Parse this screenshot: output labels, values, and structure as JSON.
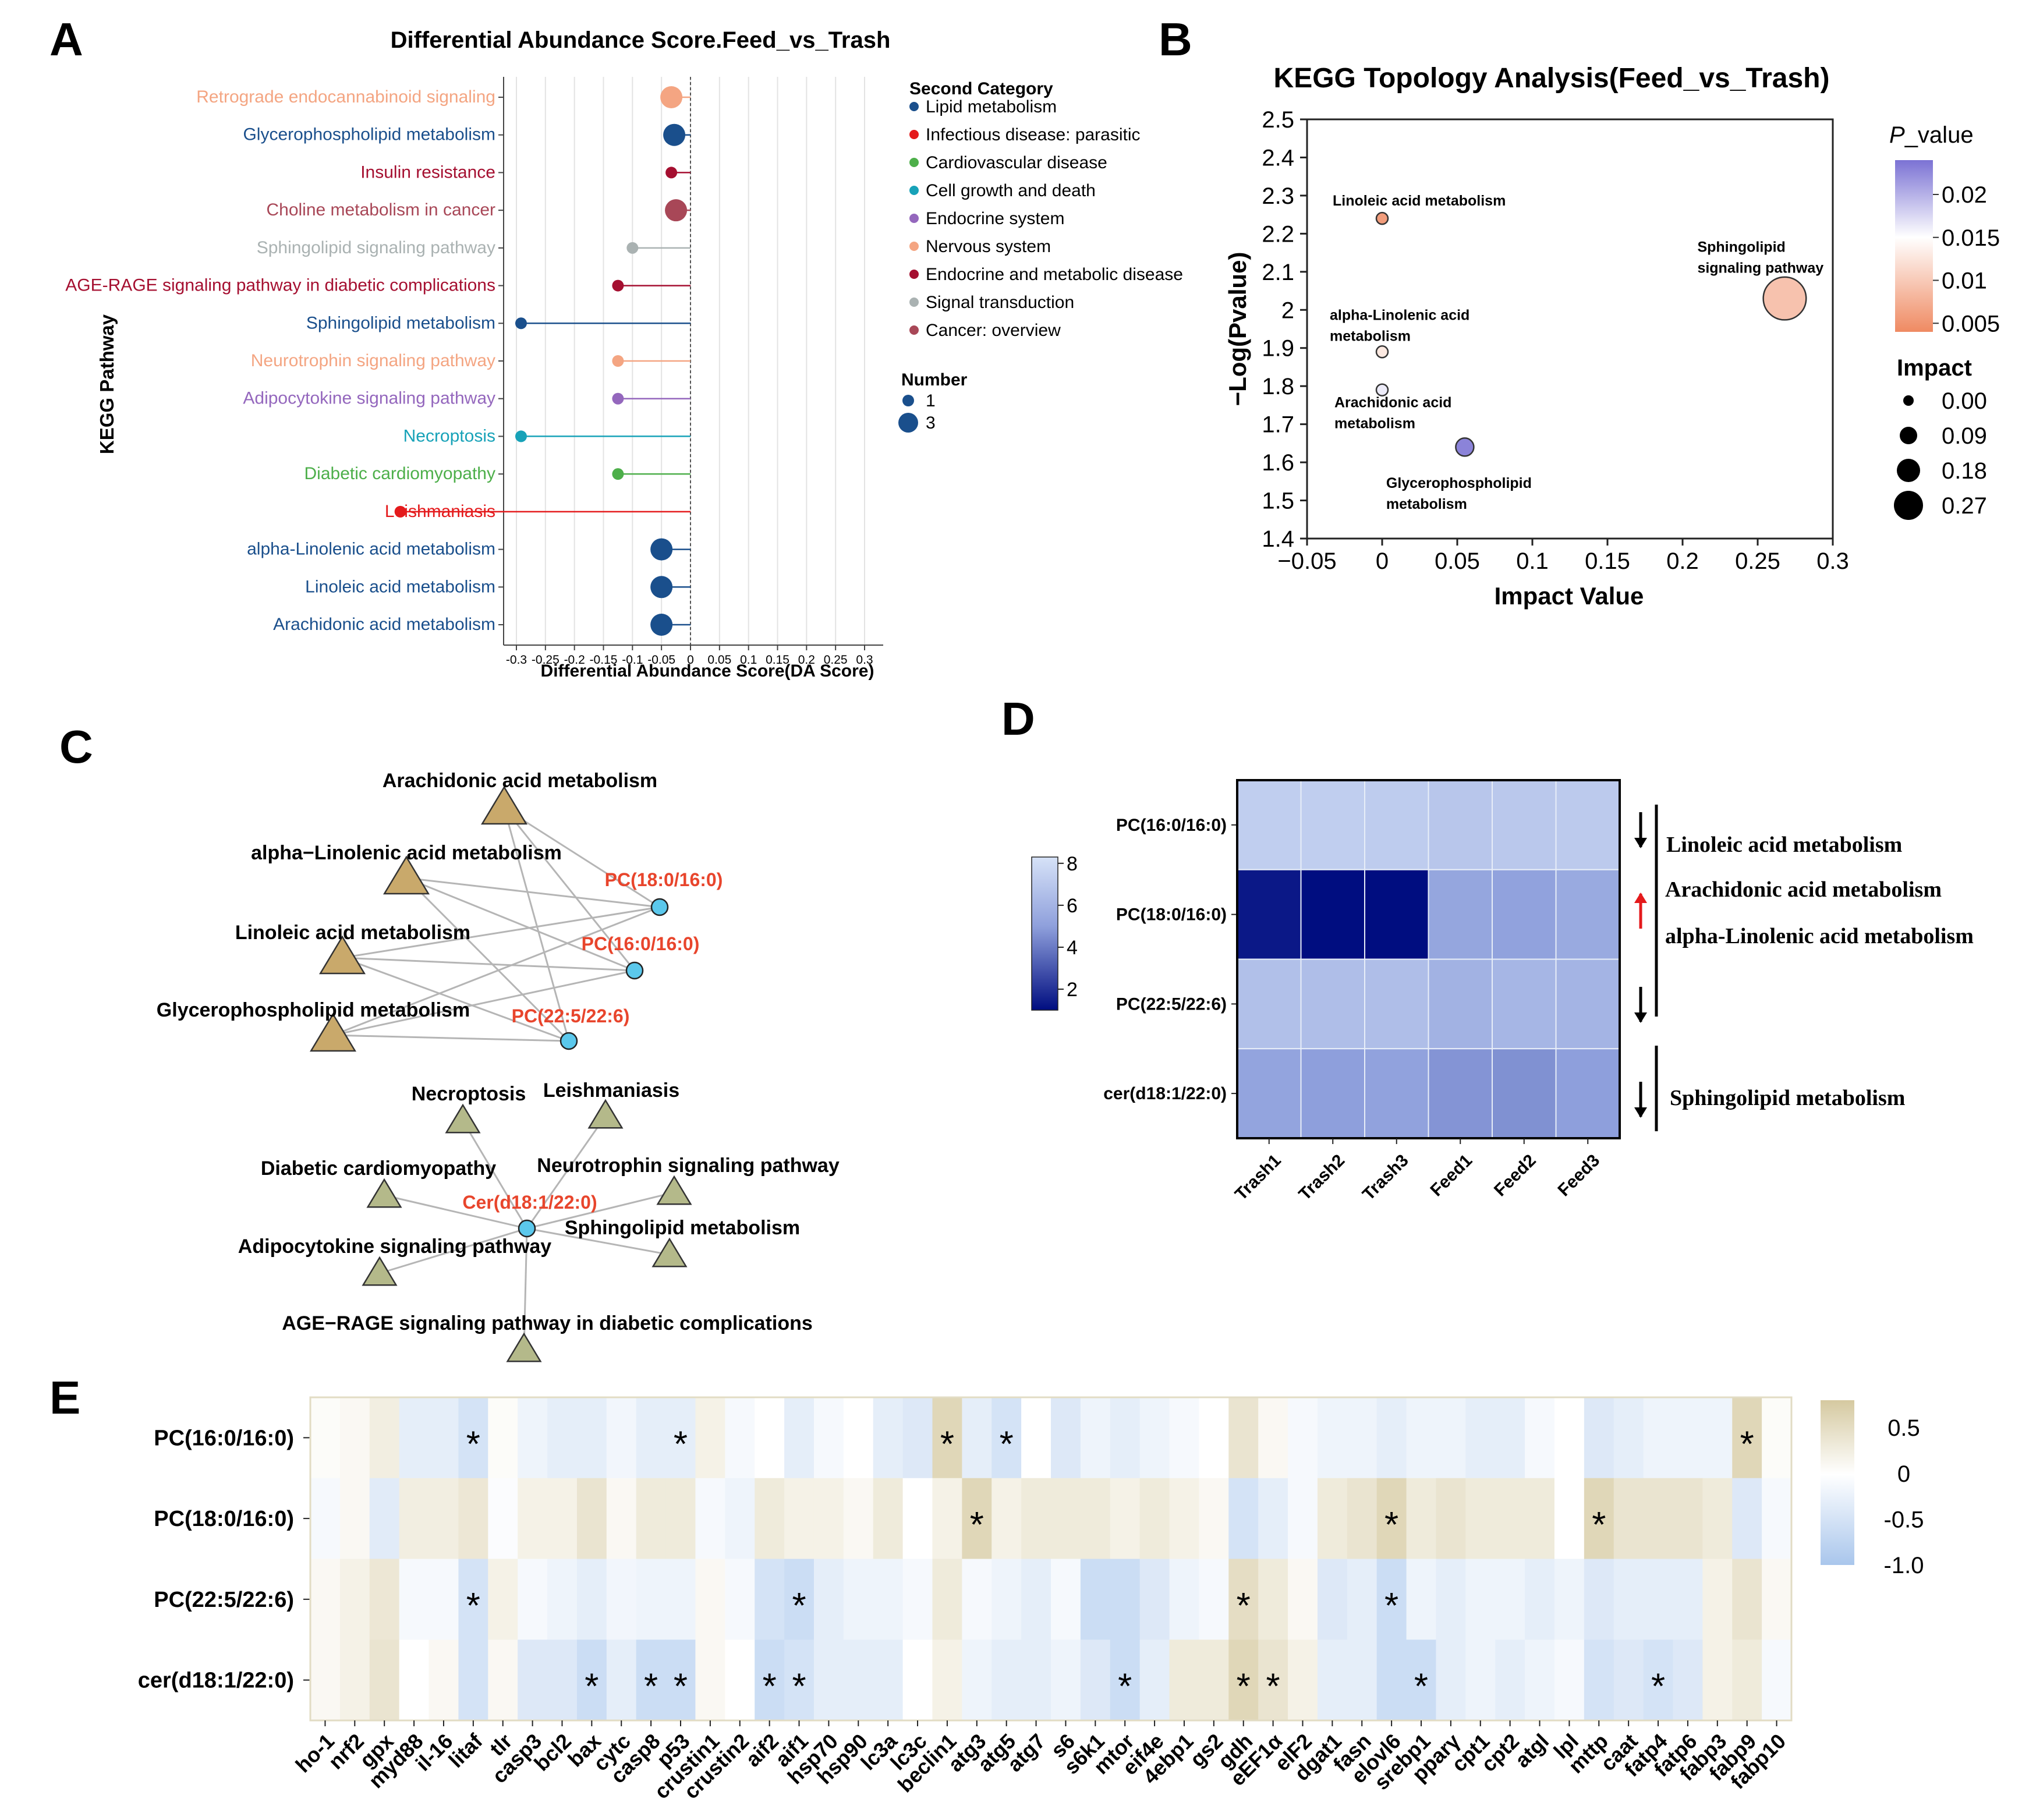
{
  "panel_letters": [
    "A",
    "B",
    "C",
    "D",
    "E"
  ],
  "chart_data": [
    {
      "panel": "A",
      "type": "lollipop",
      "title": "Differential Abundance Score.Feed_vs_Trash",
      "xlabel": "Differential Abundance Score(DA Score)",
      "ylabel": "KEGG Pathway",
      "xlim": [
        -0.3,
        0.3
      ],
      "xticks": [
        "-0.3",
        "-0.25",
        "-0.2",
        "-0.15",
        "-0.1",
        "-0.05",
        "0",
        "0.05",
        "0.1",
        "0.15",
        "0.2",
        "0.25",
        "0.3"
      ],
      "tick_values": [
        -0.3,
        -0.25,
        -0.2,
        -0.15,
        -0.1,
        -0.05,
        0,
        0.05,
        0.1,
        0.15,
        0.2,
        0.25,
        0.3
      ],
      "pathways": [
        {
          "name": "Retrograde endocannabinoid signaling",
          "score": -0.033,
          "number": 3,
          "category_index": 5
        },
        {
          "name": "Glycerophospholipid metabolism",
          "score": -0.028,
          "number": 3,
          "category_index": 0
        },
        {
          "name": "Insulin resistance",
          "score": -0.033,
          "number": 1,
          "category_index": 6
        },
        {
          "name": "Choline metabolism in cancer",
          "score": -0.025,
          "number": 3,
          "category_index": 8
        },
        {
          "name": "Sphingolipid signaling pathway",
          "score": -0.1,
          "number": 1,
          "category_index": 7
        },
        {
          "name": "AGE-RAGE signaling pathway in diabetic complications",
          "score": -0.125,
          "number": 1,
          "category_index": 6
        },
        {
          "name": "Sphingolipid metabolism",
          "score": -0.292,
          "number": 1,
          "category_index": 0
        },
        {
          "name": "Neurotrophin signaling pathway",
          "score": -0.125,
          "number": 1,
          "category_index": 5
        },
        {
          "name": "Adipocytokine signaling pathway",
          "score": -0.125,
          "number": 1,
          "category_index": 4
        },
        {
          "name": "Necroptosis",
          "score": -0.292,
          "number": 1,
          "category_index": 3
        },
        {
          "name": "Diabetic cardiomyopathy",
          "score": -0.125,
          "number": 1,
          "category_index": 2
        },
        {
          "name": "Leishmaniasis",
          "score": -0.5,
          "number": 1,
          "category_index": 1
        },
        {
          "name": "alpha-Linolenic acid metabolism",
          "score": -0.05,
          "number": 3,
          "category_index": 0
        },
        {
          "name": "Linoleic acid metabolism",
          "score": -0.05,
          "number": 3,
          "category_index": 0
        },
        {
          "name": "Arachidonic acid metabolism",
          "score": -0.05,
          "number": 3,
          "category_index": 0
        }
      ],
      "legend_title": "Second Category",
      "categories": [
        {
          "name": "Lipid metabolism",
          "color": "#1a4f8c"
        },
        {
          "name": "Infectious disease: parasitic",
          "color": "#e41a1c"
        },
        {
          "name": "Cardiovascular disease",
          "color": "#4daf4a"
        },
        {
          "name": "Cell growth and death",
          "color": "#17a2b8"
        },
        {
          "name": "Endocrine system",
          "color": "#9467bd"
        },
        {
          "name": "Nervous system",
          "color": "#f4a582"
        },
        {
          "name": "Endocrine and metabolic disease",
          "color": "#a50f30"
        },
        {
          "name": "Signal transduction",
          "color": "#aab2b2"
        },
        {
          "name": "Cancer: overview",
          "color": "#a84757"
        }
      ],
      "number_legend_title": "Number",
      "number_legend": [
        {
          "label": "1",
          "value": 1
        },
        {
          "label": "3",
          "value": 3
        }
      ]
    },
    {
      "panel": "B",
      "type": "scatter",
      "title": "KEGG Topology Analysis(Feed_vs_Trash)",
      "xlabel": "Impact Value",
      "ylabel": "−Log(Pvalue)",
      "xlim": [
        -0.05,
        0.3
      ],
      "ylim": [
        1.4,
        2.5
      ],
      "xticks": [
        "−0.05",
        "0",
        "0.05",
        "0.1",
        "0.15",
        "0.2",
        "0.25",
        "0.3"
      ],
      "xtick_values": [
        -0.05,
        0,
        0.05,
        0.1,
        0.15,
        0.2,
        0.25,
        0.3
      ],
      "yticks": [
        "1.4",
        "1.5",
        "1.6",
        "1.7",
        "1.8",
        "1.9",
        "2",
        "2.1",
        "2.2",
        "2.3",
        "2.4",
        "2.5"
      ],
      "ytick_values": [
        1.4,
        1.5,
        1.6,
        1.7,
        1.8,
        1.9,
        2.0,
        2.1,
        2.2,
        2.3,
        2.4,
        2.5
      ],
      "points": [
        {
          "label_lines": [
            "Linoleic acid metabolism"
          ],
          "x": 0,
          "y": 2.24,
          "impact": 0.0,
          "pvalue": 0.0058
        },
        {
          "label_lines": [
            "Sphingolipid",
            "signaling pathway"
          ],
          "x": 0.268,
          "y": 2.03,
          "impact": 0.268,
          "pvalue": 0.0093
        },
        {
          "label_lines": [
            "alpha-Linolenic acid",
            "metabolism"
          ],
          "x": 0,
          "y": 1.89,
          "impact": 0.0,
          "pvalue": 0.0129
        },
        {
          "label_lines": [
            "Arachidonic acid",
            "metabolism"
          ],
          "x": 0,
          "y": 1.79,
          "impact": 0.0,
          "pvalue": 0.0162
        },
        {
          "label_lines": [
            "Glycerophospholipid",
            "metabolism"
          ],
          "x": 0.055,
          "y": 1.64,
          "impact": 0.055,
          "pvalue": 0.0229
        }
      ],
      "colorbar_title": "P_value",
      "colorbar_title_italic": "P",
      "colorbar_title_rest": "_value",
      "colorbar_ticks": [
        "0.02",
        "0.015",
        "0.01",
        "0.005"
      ],
      "colorbar_tick_values": [
        0.02,
        0.015,
        0.01,
        0.005
      ],
      "colorbar_range": [
        0.004,
        0.024
      ],
      "size_legend_title": "Impact",
      "size_legend": [
        {
          "label": "0.00",
          "value": 0.0
        },
        {
          "label": "0.09",
          "value": 0.09
        },
        {
          "label": "0.18",
          "value": 0.18
        },
        {
          "label": "0.27",
          "value": 0.27
        }
      ]
    },
    {
      "panel": "C",
      "type": "network",
      "nodes": [
        {
          "id": "aa",
          "label": "Arachidonic acid metabolism",
          "kind": "pathway",
          "group": "lipid",
          "label_side": "above"
        },
        {
          "id": "ala",
          "label": "alpha−Linolenic acid metabolism",
          "kind": "pathway",
          "group": "lipid",
          "label_side": "above"
        },
        {
          "id": "la",
          "label": "Linoleic acid metabolism",
          "kind": "pathway",
          "group": "lipid",
          "label_side": "above"
        },
        {
          "id": "gp",
          "label": "Glycerophospholipid metabolism",
          "kind": "pathway",
          "group": "lipid",
          "label_side": "above"
        },
        {
          "id": "pc1",
          "label": "PC(18:0/16:0)",
          "kind": "metabolite",
          "label_side": "above"
        },
        {
          "id": "pc2",
          "label": "PC(16:0/16:0)",
          "kind": "metabolite",
          "label_side": "above"
        },
        {
          "id": "pc3",
          "label": "PC(22:5/22:6)",
          "kind": "metabolite",
          "label_side": "above"
        },
        {
          "id": "nec",
          "label": "Necroptosis",
          "kind": "pathway",
          "group": "other",
          "label_side": "above"
        },
        {
          "id": "lei",
          "label": "Leishmaniasis",
          "kind": "pathway",
          "group": "other",
          "label_side": "above"
        },
        {
          "id": "dc",
          "label": "Diabetic cardiomyopathy",
          "kind": "pathway",
          "group": "other",
          "label_side": "above"
        },
        {
          "id": "nsp",
          "label": "Neurotrophin signaling pathway",
          "kind": "pathway",
          "group": "other",
          "label_side": "above"
        },
        {
          "id": "cer",
          "label": "Cer(d18:1/22:0)",
          "kind": "metabolite",
          "label_side": "above"
        },
        {
          "id": "asp",
          "label": "Adipocytokine signaling pathway",
          "kind": "pathway",
          "group": "other",
          "label_side": "above"
        },
        {
          "id": "sm",
          "label": "Sphingolipid metabolism",
          "kind": "pathway",
          "group": "other",
          "label_side": "above"
        },
        {
          "id": "age",
          "label": "AGE−RAGE signaling pathway in diabetic complications",
          "kind": "pathway",
          "group": "other",
          "label_side": "above"
        }
      ],
      "edges": [
        [
          "aa",
          "pc1"
        ],
        [
          "aa",
          "pc2"
        ],
        [
          "aa",
          "pc3"
        ],
        [
          "ala",
          "pc1"
        ],
        [
          "ala",
          "pc2"
        ],
        [
          "ala",
          "pc3"
        ],
        [
          "la",
          "pc1"
        ],
        [
          "la",
          "pc2"
        ],
        [
          "la",
          "pc3"
        ],
        [
          "gp",
          "pc1"
        ],
        [
          "gp",
          "pc2"
        ],
        [
          "gp",
          "pc3"
        ],
        [
          "cer",
          "nec"
        ],
        [
          "cer",
          "lei"
        ],
        [
          "cer",
          "dc"
        ],
        [
          "cer",
          "nsp"
        ],
        [
          "cer",
          "asp"
        ],
        [
          "cer",
          "sm"
        ],
        [
          "cer",
          "age"
        ]
      ],
      "colors": {
        "lipid_triangle": "#c9a96b",
        "other_triangle": "#b4b98a",
        "metabolite": "#5bc8ec",
        "edge": "#b5b5b5",
        "metabolite_label": "#e8452c"
      }
    },
    {
      "panel": "D",
      "type": "heatmap",
      "rows": [
        "PC(16:0/16:0)",
        "PC(18:0/16:0)",
        "PC(22:5/22:6)",
        "cer(d18:1/22:0)"
      ],
      "columns": [
        "Trash1",
        "Trash2",
        "Trash3",
        "Feed1",
        "Feed2",
        "Feed3"
      ],
      "values": [
        [
          7.3,
          7.3,
          7.2,
          6.9,
          7.0,
          7.1
        ],
        [
          1.3,
          1.0,
          1.0,
          5.3,
          5.1,
          5.5
        ],
        [
          6.6,
          6.5,
          6.5,
          5.9,
          6.1,
          6.0
        ],
        [
          5.2,
          5.0,
          5.1,
          4.7,
          4.6,
          5.0
        ]
      ],
      "colorbar_ticks": [
        "8",
        "6",
        "4",
        "2"
      ],
      "colorbar_tick_values": [
        8,
        6,
        4,
        2
      ],
      "colorbar_range": [
        1,
        8.3
      ],
      "annotations": [
        {
          "arrow": "down",
          "color": "#000000",
          "labels": [
            "Linoleic acid metabolism"
          ]
        },
        {
          "arrow": "up",
          "color": "#e41a1c",
          "labels": [
            "Arachidonic acid metabolism",
            "alpha-Linolenic acid metabolism"
          ]
        },
        {
          "arrow": "down",
          "color": "#000000",
          "labels": []
        },
        {
          "arrow": "down",
          "color": "#000000",
          "labels": [
            "Sphingolipid metabolism"
          ]
        }
      ]
    },
    {
      "panel": "E",
      "type": "heatmap",
      "rows": [
        "PC(16:0/16:0)",
        "PC(18:0/16:0)",
        "PC(22:5/22:6)",
        "cer(d18:1/22:0)"
      ],
      "columns": [
        "ho-1",
        "nrf2",
        "gpx",
        "myd88",
        "il-16",
        "litaf",
        "tlr",
        "casp3",
        "bcl2",
        "bax",
        "cytc",
        "casp8",
        "p53",
        "crustin1",
        "crustin2",
        "aif2",
        "aif1",
        "hsp70",
        "hsp90",
        "lc3a",
        "lc3c",
        "beclin1",
        "atg3",
        "atg5",
        "atg7",
        "s6",
        "s6k1",
        "mtor",
        "eif4e",
        "4ebp1",
        "gs2",
        "gdh",
        "eEF1α",
        "eIF2",
        "dgat1",
        "fasn",
        "elovl6",
        "srebp1",
        "pparγ",
        "cpt1",
        "cpt2",
        "atgl",
        "lpl",
        "mttp",
        "caat",
        "fatp4",
        "fatp6",
        "fabp3",
        "fabp9",
        "fabp10"
      ],
      "values": [
        [
          0.05,
          0.1,
          0.25,
          -0.3,
          -0.3,
          -0.5,
          0.05,
          -0.2,
          -0.3,
          -0.3,
          -0.15,
          -0.3,
          -0.3,
          0.2,
          -0.1,
          0.0,
          -0.3,
          -0.1,
          0.0,
          -0.3,
          -0.4,
          0.6,
          -0.3,
          -0.5,
          0.0,
          -0.4,
          -0.2,
          -0.3,
          -0.2,
          -0.1,
          0.0,
          0.4,
          0.1,
          -0.1,
          -0.2,
          -0.2,
          -0.3,
          -0.2,
          -0.2,
          -0.3,
          -0.3,
          -0.1,
          0.0,
          -0.4,
          -0.3,
          -0.2,
          -0.2,
          -0.2,
          0.6,
          0.05
        ],
        [
          -0.1,
          0.1,
          -0.35,
          0.25,
          0.25,
          0.35,
          -0.05,
          0.2,
          0.2,
          0.4,
          0.1,
          0.3,
          0.3,
          -0.1,
          -0.2,
          0.3,
          0.2,
          0.2,
          0.1,
          0.3,
          0.0,
          0.2,
          0.6,
          0.2,
          0.3,
          0.3,
          0.3,
          0.2,
          0.3,
          0.2,
          0.1,
          -0.5,
          -0.3,
          -0.1,
          0.3,
          0.4,
          0.6,
          0.3,
          0.4,
          0.3,
          0.3,
          0.3,
          0.0,
          0.6,
          0.4,
          0.4,
          0.4,
          0.3,
          -0.4,
          -0.1
        ],
        [
          0.1,
          0.2,
          0.35,
          -0.1,
          -0.1,
          -0.5,
          0.2,
          -0.1,
          -0.2,
          -0.3,
          -0.15,
          -0.2,
          -0.2,
          0.1,
          -0.1,
          -0.5,
          -0.6,
          -0.3,
          -0.2,
          -0.2,
          -0.1,
          0.3,
          -0.1,
          -0.2,
          -0.3,
          -0.1,
          -0.6,
          -0.6,
          -0.4,
          -0.2,
          -0.1,
          0.5,
          0.3,
          0.1,
          -0.4,
          -0.3,
          -0.6,
          -0.2,
          -0.3,
          -0.2,
          -0.2,
          -0.3,
          -0.2,
          -0.4,
          -0.3,
          -0.3,
          -0.3,
          0.2,
          0.4,
          0.1
        ],
        [
          0.1,
          0.2,
          0.4,
          0.0,
          0.1,
          -0.5,
          0.1,
          -0.4,
          -0.4,
          -0.6,
          -0.3,
          -0.6,
          -0.6,
          0.1,
          0.0,
          -0.6,
          -0.5,
          -0.3,
          -0.3,
          -0.3,
          0.0,
          0.2,
          -0.2,
          -0.3,
          -0.3,
          -0.2,
          -0.4,
          -0.6,
          -0.3,
          0.3,
          0.3,
          0.6,
          0.4,
          0.2,
          -0.3,
          -0.3,
          -0.6,
          -0.6,
          -0.3,
          -0.2,
          -0.3,
          -0.2,
          -0.1,
          -0.5,
          -0.4,
          -0.5,
          -0.4,
          0.2,
          0.3,
          -0.1
        ]
      ],
      "significance": [
        {
          "row": 0,
          "col": 5,
          "mark": "*"
        },
        {
          "row": 0,
          "col": 12,
          "mark": "*"
        },
        {
          "row": 0,
          "col": 21,
          "mark": "*"
        },
        {
          "row": 0,
          "col": 23,
          "mark": "*"
        },
        {
          "row": 0,
          "col": 48,
          "mark": "*"
        },
        {
          "row": 1,
          "col": 22,
          "mark": "*"
        },
        {
          "row": 1,
          "col": 36,
          "mark": "*"
        },
        {
          "row": 1,
          "col": 43,
          "mark": "*"
        },
        {
          "row": 2,
          "col": 5,
          "mark": "*"
        },
        {
          "row": 2,
          "col": 16,
          "mark": "*"
        },
        {
          "row": 2,
          "col": 31,
          "mark": "*"
        },
        {
          "row": 2,
          "col": 36,
          "mark": "*"
        },
        {
          "row": 3,
          "col": 9,
          "mark": "*"
        },
        {
          "row": 3,
          "col": 11,
          "mark": "*"
        },
        {
          "row": 3,
          "col": 12,
          "mark": "*"
        },
        {
          "row": 3,
          "col": 15,
          "mark": "*"
        },
        {
          "row": 3,
          "col": 16,
          "mark": "*"
        },
        {
          "row": 3,
          "col": 27,
          "mark": "*"
        },
        {
          "row": 3,
          "col": 31,
          "mark": "*"
        },
        {
          "row": 3,
          "col": 32,
          "mark": "*"
        },
        {
          "row": 3,
          "col": 37,
          "mark": "*"
        },
        {
          "row": 3,
          "col": 45,
          "mark": "*"
        }
      ],
      "colorbar_ticks": [
        "0.5",
        "0",
        "-0.5",
        "-1.0"
      ],
      "colorbar_tick_values": [
        0.5,
        0,
        -0.5,
        -1.0
      ],
      "colorbar_range": [
        -1.0,
        0.8
      ],
      "colors": {
        "positive": "#d5c9a0",
        "mid": "#ffffff",
        "negative": "#a9c6ec"
      }
    }
  ]
}
